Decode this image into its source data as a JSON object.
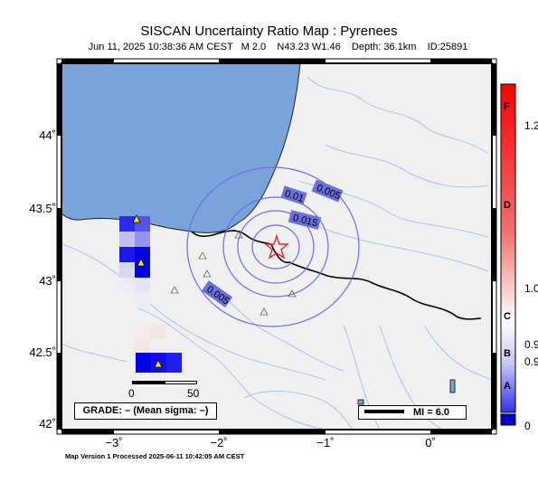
{
  "header": {
    "title": "SISCAN Uncertainty Ratio Map : Pyrenees",
    "subtitle": "Jun 11, 2025 10:38:36 AM CEST   M 2.0    N43.23 W1.46    Depth: 36.1km    ID:25891"
  },
  "axes": {
    "y_ticks": [
      "44˚",
      "43.5˚",
      "43˚",
      "42.5˚",
      "42˚"
    ],
    "x_ticks": [
      "−3˚",
      "−2˚",
      "−1˚",
      "0˚"
    ]
  },
  "colorbar": {
    "letters": [
      "F",
      "D",
      "C",
      "B",
      "A"
    ],
    "values": [
      "1.2",
      "1.0",
      "0.9",
      "0.9",
      "0"
    ]
  },
  "map": {
    "contour_labels": [
      "0.005",
      "0.01",
      "0.015",
      "0.005"
    ],
    "grade_label": "GRADE: – (Mean sigma: –)",
    "scale_start": "0",
    "scale_end": "50",
    "mi_label": "MI = 6.0",
    "colors": {
      "sea": "#7aa3db",
      "land": "#f0f0f0",
      "epicenter": "#e8242a",
      "high_ratio": "#0000ee"
    }
  },
  "footer": "Map Version 1 Processed 2025-06-11 10:42:05 AM CEST"
}
